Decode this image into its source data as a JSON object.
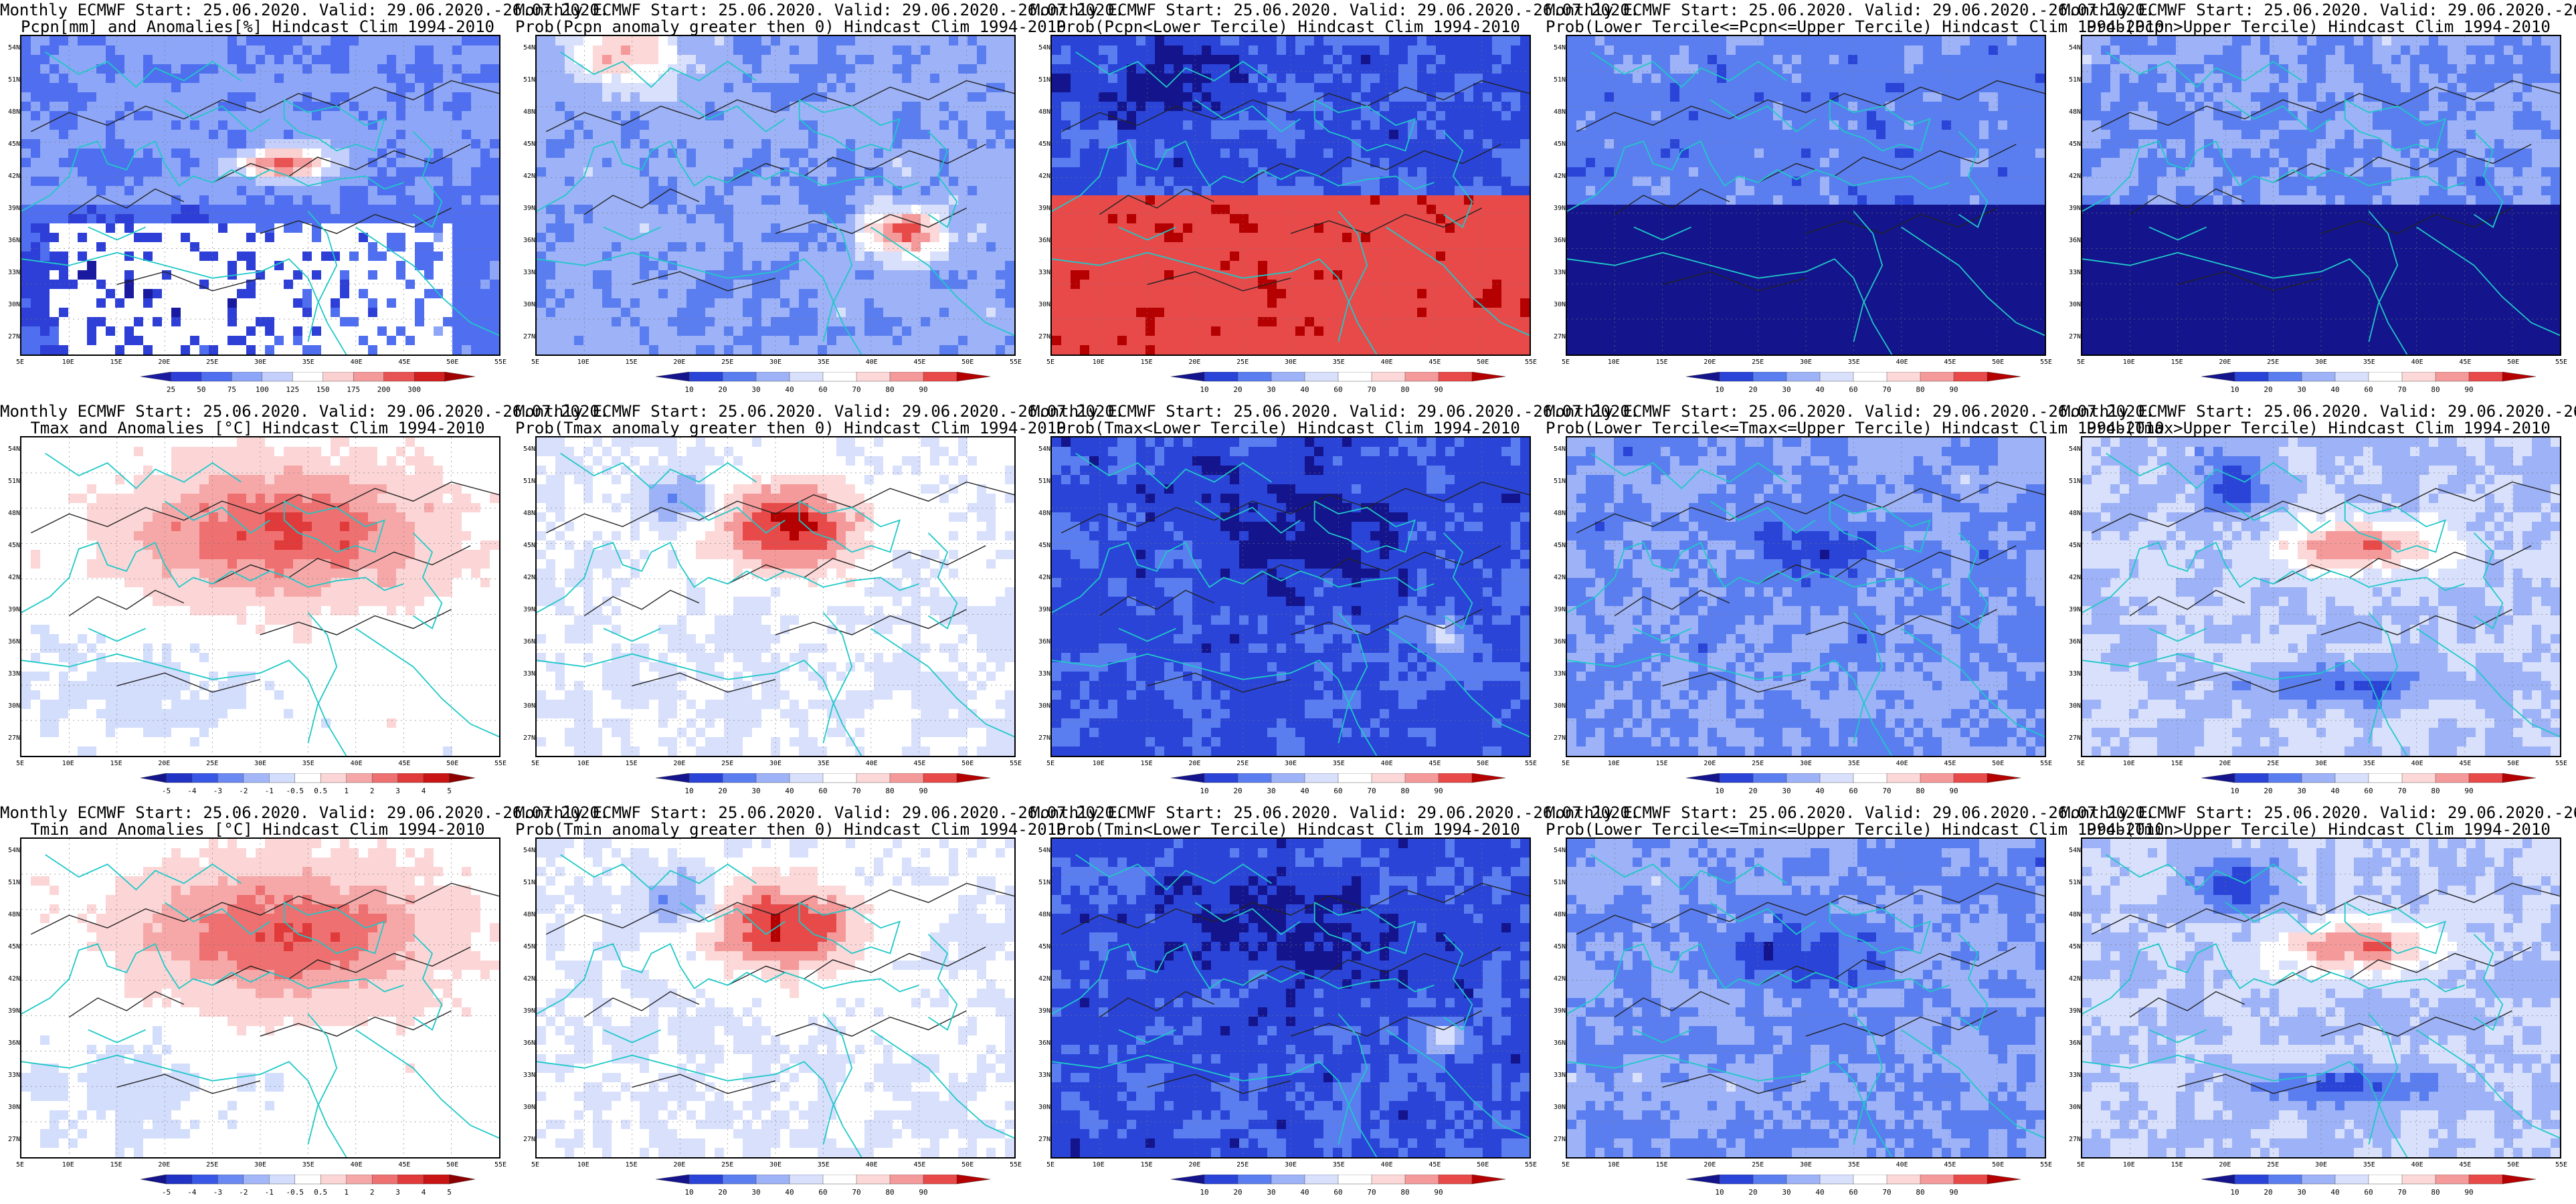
{
  "header_line": "Monthly ECMWF Start: 25.06.2020. Valid: 29.06.2020.-26.07.2020.",
  "lat_labels": [
    "54N",
    "51N",
    "48N",
    "45N",
    "42N",
    "39N",
    "36N",
    "33N",
    "30N",
    "27N"
  ],
  "lon_labels": [
    "5E",
    "10E",
    "15E",
    "20E",
    "25E",
    "30E",
    "35E",
    "40E",
    "45E",
    "50E",
    "55E"
  ],
  "colorbars": {
    "pcpn": {
      "ticks": [
        "25",
        "50",
        "75",
        "100",
        "125",
        "150",
        "175",
        "200",
        "300"
      ],
      "colors": [
        "#1a1aa0",
        "#2d3fd6",
        "#4f6ff0",
        "#8ea6f7",
        "#c4d0fb",
        "#ffffff",
        "#fbd0d0",
        "#f49a9a",
        "#e85454",
        "#d21f1f",
        "#a00000"
      ]
    },
    "anom": {
      "ticks": [
        "-5",
        "-4",
        "-3",
        "-2",
        "-1",
        "-0.5",
        "0.5",
        "1",
        "2",
        "3",
        "4",
        "5"
      ],
      "colors": [
        "#14148c",
        "#2133c4",
        "#3957e6",
        "#6b89f2",
        "#a3b7f8",
        "#d3ddfc",
        "#ffffff",
        "#fcd6d6",
        "#f6a8a8",
        "#ee7070",
        "#e03a3a",
        "#c81414",
        "#8c0000"
      ]
    },
    "prob": {
      "ticks": [
        "10",
        "20",
        "30",
        "40",
        "60",
        "70",
        "80",
        "90"
      ],
      "colors": [
        "#14148c",
        "#2a44d8",
        "#5a7ef0",
        "#9db2f7",
        "#d8e0fc",
        "#ffffff",
        "#fcd8d8",
        "#f59a9a",
        "#e84a4a",
        "#b40000"
      ]
    }
  },
  "panels": [
    {
      "name": "pcpn-anomaly",
      "title2": "Pcpn[mm] and Anomalies[%] Hindcast Clim 1994-2010",
      "cbar": "pcpn",
      "scheme": "pcpn"
    },
    {
      "name": "pcpn-prob-above-zero",
      "title2": "Prob(Pcpn anomaly greater then 0) Hindcast Clim 1994-2010",
      "cbar": "prob",
      "scheme": "pcpnprob"
    },
    {
      "name": "pcpn-prob-lower-tercile",
      "title2": "Prob(Pcpn<Lower Tercile) Hindcast Clim 1994-2010",
      "cbar": "prob",
      "scheme": "pcpnlow"
    },
    {
      "name": "pcpn-prob-middle-tercile",
      "title2": "Prob(Lower Tercile<=Pcpn<=Upper Tercile) Hindcast Clim 1994-2010",
      "cbar": "prob",
      "scheme": "pcpnmid"
    },
    {
      "name": "pcpn-prob-upper-tercile",
      "title2": "Prob(Pcpn>Upper Tercile) Hindcast Clim 1994-2010",
      "cbar": "prob",
      "scheme": "pcpnhigh"
    },
    {
      "name": "tmax-anomaly",
      "title2": "Tmax and Anomalies [°C] Hindcast Clim 1994-2010",
      "cbar": "anom",
      "scheme": "tanom"
    },
    {
      "name": "tmax-prob-above-zero",
      "title2": "Prob(Tmax anomaly greater then 0) Hindcast Clim 1994-2010",
      "cbar": "prob",
      "scheme": "tprob"
    },
    {
      "name": "tmax-prob-lower-tercile",
      "title2": "Prob(Tmax<Lower Tercile) Hindcast Clim 1994-2010",
      "cbar": "prob",
      "scheme": "tlow"
    },
    {
      "name": "tmax-prob-middle-tercile",
      "title2": "Prob(Lower Tercile<=Tmax<=Upper Tercile) Hindcast Clim 1994-2010",
      "cbar": "prob",
      "scheme": "tmid"
    },
    {
      "name": "tmax-prob-upper-tercile",
      "title2": "Prob(Tmax>Upper Tercile) Hindcast Clim 1994-2010",
      "cbar": "prob",
      "scheme": "thigh"
    },
    {
      "name": "tmin-anomaly",
      "title2": "Tmin and Anomalies [°C] Hindcast Clim 1994-2010",
      "cbar": "anom",
      "scheme": "tanom"
    },
    {
      "name": "tmin-prob-above-zero",
      "title2": "Prob(Tmin anomaly greater then 0) Hindcast Clim 1994-2010",
      "cbar": "prob",
      "scheme": "tprob"
    },
    {
      "name": "tmin-prob-lower-tercile",
      "title2": "Prob(Tmin<Lower Tercile) Hindcast Clim 1994-2010",
      "cbar": "prob",
      "scheme": "tlow"
    },
    {
      "name": "tmin-prob-middle-tercile",
      "title2": "Prob(Lower Tercile<=Tmin<=Upper Tercile) Hindcast Clim 1994-2010",
      "cbar": "prob",
      "scheme": "tmid"
    },
    {
      "name": "tmin-prob-upper-tercile",
      "title2": "Prob(Tmin>Upper Tercile) Hindcast Clim 1994-2010",
      "cbar": "prob",
      "scheme": "thigh"
    }
  ]
}
